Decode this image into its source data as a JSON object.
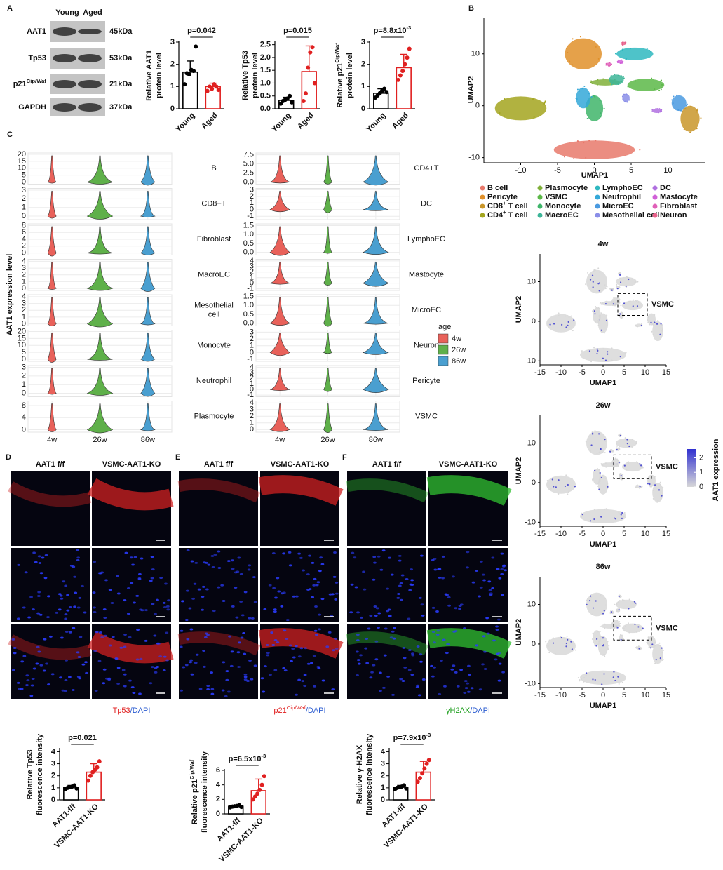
{
  "figure": {
    "panel_letters": [
      "A",
      "B",
      "C",
      "D",
      "E",
      "F"
    ],
    "blot": {
      "groups": [
        "Young",
        "Aged"
      ],
      "rows": [
        {
          "label": [
            {
              "text": "AAT1"
            }
          ],
          "size": "45kDa"
        },
        {
          "label": [
            {
              "text": "Tp53"
            }
          ],
          "size": "53kDa"
        },
        {
          "label": [
            {
              "text": "p21"
            },
            {
              "text": "Cip/Waf",
              "sup": true
            }
          ],
          "size": "21kDa"
        },
        {
          "label": [
            {
              "text": "GAPDH"
            }
          ],
          "size": "37kDa"
        }
      ]
    },
    "protein_charts": [
      {
        "ylabel": [
          [
            {
              "text": "Relative AAT1"
            }
          ],
          [
            {
              "text": "protein level"
            }
          ]
        ],
        "categories": [
          "Young",
          "Aged"
        ],
        "values": [
          1.65,
          1.0
        ],
        "errors": [
          0.5,
          0.15
        ],
        "points": [
          [
            1.1,
            1.6,
            1.55,
            1.75,
            1.7,
            2.8
          ],
          [
            0.8,
            1.0,
            0.9,
            1.1,
            1.0,
            0.85
          ]
        ],
        "colors": [
          "#000000",
          "#e02020"
        ],
        "ylim": [
          0,
          3
        ],
        "yticks": [
          0,
          1,
          2,
          3
        ],
        "pvalue": [
          {
            "text": "p=0.042"
          }
        ]
      },
      {
        "ylabel": [
          [
            {
              "text": "Relative Tp53"
            }
          ],
          [
            {
              "text": "protein level"
            }
          ]
        ],
        "categories": [
          "Young",
          "Aged"
        ],
        "values": [
          0.33,
          1.45
        ],
        "errors": [
          0.12,
          1.0
        ],
        "points": [
          [
            0.2,
            0.3,
            0.35,
            0.4,
            0.5,
            0.25
          ],
          [
            0.3,
            0.6,
            1.6,
            2.2,
            2.4,
            1.0
          ]
        ],
        "colors": [
          "#000000",
          "#e02020"
        ],
        "ylim": [
          0,
          2.6
        ],
        "yticks": [
          {
            "value": 0,
            "label": "0.0"
          },
          0.5,
          {
            "value": 1,
            "label": "1.0"
          },
          1.5,
          {
            "value": 2,
            "label": "2.0"
          },
          2.5
        ],
        "pvalue": [
          {
            "text": "p=0.015"
          }
        ]
      },
      {
        "ylabel": [
          [
            {
              "text": "Relative p21"
            },
            {
              "text": "Cip/Waf",
              "sup": true
            }
          ],
          [
            {
              "text": "protein level"
            }
          ]
        ],
        "categories": [
          "Young",
          "Aged"
        ],
        "values": [
          0.7,
          1.85
        ],
        "errors": [
          0.2,
          0.6
        ],
        "points": [
          [
            0.5,
            0.6,
            0.7,
            0.8,
            0.9,
            0.75
          ],
          [
            1.3,
            1.5,
            1.7,
            2.0,
            2.3,
            2.7
          ]
        ],
        "colors": [
          "#000000",
          "#e02020"
        ],
        "ylim": [
          0,
          3
        ],
        "yticks": [
          0,
          1,
          2,
          3
        ],
        "pvalue": [
          {
            "text": "p=8.8x10"
          },
          {
            "text": "-3",
            "sup": true
          }
        ]
      }
    ],
    "umap": {
      "xlabel": "UMAP1",
      "ylabel": "UMAP2",
      "xlim": [
        -15,
        15
      ],
      "ylim": [
        -11,
        17
      ],
      "xticks": [
        -10,
        -5,
        0,
        5,
        10
      ],
      "yticks": [
        -10,
        0,
        10
      ],
      "legend": [
        {
          "label": [
            {
              "text": "B cell"
            }
          ],
          "color": "#e8796b"
        },
        {
          "label": [
            {
              "text": "Pericyte"
            }
          ],
          "color": "#e0902a"
        },
        {
          "label": [
            {
              "text": "CD8"
            },
            {
              "text": "+",
              "sup": true
            },
            {
              "text": " T cell"
            }
          ],
          "color": "#c9962a"
        },
        {
          "label": [
            {
              "text": "CD4"
            },
            {
              "text": "+",
              "sup": true
            },
            {
              "text": " T cell"
            }
          ],
          "color": "#a3a51f"
        },
        {
          "label": [
            {
              "text": "Plasmocyte"
            }
          ],
          "color": "#80b03a"
        },
        {
          "label": [
            {
              "text": "VSMC"
            }
          ],
          "color": "#5cb848"
        },
        {
          "label": [
            {
              "text": "Monocyte"
            }
          ],
          "color": "#3fb56a"
        },
        {
          "label": [
            {
              "text": "MacroEC"
            }
          ],
          "color": "#3cb598"
        },
        {
          "label": [
            {
              "text": "LymphoEC"
            }
          ],
          "color": "#2fb8c0"
        },
        {
          "label": [
            {
              "text": "Neutrophil"
            }
          ],
          "color": "#34a8d8"
        },
        {
          "label": [
            {
              "text": "MicroEC"
            }
          ],
          "color": "#4a9ae0"
        },
        {
          "label": [
            {
              "text": "Mesothelial cell"
            }
          ],
          "color": "#8a8ee8"
        },
        {
          "label": [
            {
              "text": "DC"
            }
          ],
          "color": "#b070e0"
        },
        {
          "label": [
            {
              "text": "Mastocyte"
            }
          ],
          "color": "#d060d8"
        },
        {
          "label": [
            {
              "text": "Fibroblast"
            }
          ],
          "color": "#e060b8"
        },
        {
          "label": [
            {
              "text": "Neuron"
            }
          ],
          "color": "#e8608a"
        }
      ]
    },
    "feature_plots": {
      "titles": [
        "4w",
        "26w",
        "86w"
      ],
      "xlabel": "UMAP1",
      "ylabel": "UMAP2",
      "xlim": [
        -15,
        15
      ],
      "ylim": [
        -11,
        17
      ],
      "xticks": [
        -15,
        -10,
        -5,
        0,
        5,
        10,
        15
      ],
      "yticks": [
        -10,
        0,
        10
      ],
      "box_label": "VSMC",
      "colorbar": {
        "label": "AAT1 expression",
        "ticks": [
          0,
          1,
          2
        ],
        "lim": [
          0,
          2.6
        ],
        "colors": [
          "#d8d8d8",
          "#3030d0"
        ]
      }
    },
    "violins": {
      "ylabel": "AAT1 expression level",
      "categories": [
        "4w",
        "26w",
        "86w"
      ],
      "colors": [
        "#e8615a",
        "#5fb04a",
        "#4a9fd0"
      ],
      "legend_title": "age",
      "columns": [
        [
          {
            "label": [
              "B"
            ],
            "ylim": [
              -1.5,
              21
            ],
            "yticks": [
              0,
              5,
              10,
              15,
              20
            ]
          },
          {
            "label": [
              "CD8+T"
            ],
            "ylim": [
              -0.4,
              3.2
            ],
            "yticks": [
              0,
              1,
              2,
              3
            ]
          },
          {
            "label": [
              "Fibroblast"
            ],
            "ylim": [
              -0.6,
              8.5
            ],
            "yticks": [
              0,
              2,
              4,
              6,
              8
            ]
          },
          {
            "label": [
              "MacroEC"
            ],
            "ylim": [
              -0.3,
              4.3
            ],
            "yticks": [
              0,
              1,
              2,
              3,
              4
            ]
          },
          {
            "label": [
              "Mesothelial",
              "cell"
            ],
            "ylim": [
              -0.3,
              4.3
            ],
            "yticks": [
              0,
              1,
              2,
              3,
              4
            ]
          },
          {
            "label": [
              "Monocyte"
            ],
            "ylim": [
              -1.5,
              21
            ],
            "yticks": [
              0,
              5,
              10,
              15,
              20
            ]
          },
          {
            "label": [
              "Neutrophil"
            ],
            "ylim": [
              -0.4,
              3.2
            ],
            "yticks": [
              0,
              1,
              2,
              3
            ]
          },
          {
            "label": [
              "Plasmocyte"
            ],
            "ylim": [
              -0.8,
              9.5
            ],
            "yticks": [
              0,
              4,
              8
            ]
          }
        ],
        [
          {
            "label": [
              "CD4+T"
            ],
            "ylim": [
              -0.6,
              8
            ],
            "yticks": [
              {
                "value": 0,
                "label": "0.0"
              },
              2.5,
              {
                "value": 5,
                "label": "5.0"
              },
              7.5
            ]
          },
          {
            "label": [
              "DC"
            ],
            "ylim": [
              -1.5,
              3.2
            ],
            "yticks": [
              -1,
              0,
              1,
              2,
              3
            ]
          },
          {
            "label": [
              "LymphoEC"
            ],
            "ylim": [
              -0.15,
              1.6
            ],
            "yticks": [
              {
                "value": 0,
                "label": "0.0"
              },
              0.5,
              {
                "value": 1,
                "label": "1.0"
              },
              1.5
            ]
          },
          {
            "label": [
              "Mastocyte"
            ],
            "ylim": [
              -1.3,
              4.3
            ],
            "yticks": [
              -1,
              0,
              1,
              2,
              3,
              4
            ]
          },
          {
            "label": [
              "MicroEC"
            ],
            "ylim": [
              -0.15,
              1.6
            ],
            "yticks": [
              {
                "value": 0,
                "label": "0.0"
              },
              0.5,
              {
                "value": 1,
                "label": "1.0"
              },
              1.5
            ]
          },
          {
            "label": [
              "Neuron"
            ],
            "ylim": [
              -1.3,
              3.3
            ],
            "yticks": [
              -1,
              0,
              1,
              2,
              3
            ]
          },
          {
            "label": [
              "Pericyte"
            ],
            "ylim": [
              -1.3,
              4.3
            ],
            "yticks": [
              -1,
              0,
              1,
              2,
              3,
              4
            ]
          },
          {
            "label": [
              "VSMC"
            ],
            "ylim": [
              -0.4,
              4.3
            ],
            "yticks": [
              0,
              1,
              2,
              3,
              4
            ]
          }
        ]
      ]
    },
    "micrographs": [
      {
        "conditions": [
          "AAT1 f/f",
          "VSMC-AAT1-KO"
        ],
        "marker_color": "#d02020",
        "stain": [
          {
            "text": "Tp53",
            "color": "#e02020"
          },
          {
            "text": "/DAPI",
            "color": "#2a5bd0"
          }
        ]
      },
      {
        "conditions": [
          "AAT1 f/f",
          "VSMC-AAT1-KO"
        ],
        "marker_color": "#d02020",
        "stain": [
          {
            "text": "p21",
            "color": "#e02020"
          },
          {
            "text": "Cip/Waf",
            "sup": true,
            "color": "#e02020"
          },
          {
            "text": "/DAPI",
            "color": "#2a5bd0"
          }
        ]
      },
      {
        "conditions": [
          "AAT1 f/f",
          "VSMC-AAT1-KO"
        ],
        "marker_color": "#30c030",
        "stain": [
          {
            "text": "γH2AX",
            "color": "#20a020"
          },
          {
            "text": "/DAPI",
            "color": "#2a5bd0"
          }
        ]
      }
    ],
    "fluorescence_charts": [
      {
        "ylabel": [
          [
            {
              "text": "Relative Tp53"
            }
          ],
          [
            {
              "text": "fluorescence intensity"
            }
          ]
        ],
        "categories": [
          "AAT1-f/f",
          "VSMC-AAT1-KO"
        ],
        "values": [
          1.05,
          2.3
        ],
        "errors": [
          0.15,
          0.7
        ],
        "points": [
          [
            0.9,
            1.0,
            1.05,
            1.1,
            1.2,
            0.95
          ],
          [
            1.6,
            2.0,
            2.3,
            2.5,
            2.7,
            3.2
          ]
        ],
        "colors": [
          "#000000",
          "#e02020"
        ],
        "ylim": [
          0,
          4.2
        ],
        "yticks": [
          0,
          1,
          2,
          3,
          4
        ],
        "pvalue": [
          {
            "text": "p=0.021"
          }
        ]
      },
      {
        "ylabel": [
          [
            {
              "text": "Relative p21"
            },
            {
              "text": "Cip/Waf",
              "sup": true
            }
          ],
          [
            {
              "text": "fluorescence intensity"
            }
          ]
        ],
        "categories": [
          "AAT1-f/f",
          "VSMC-AAT1-KO"
        ],
        "values": [
          1.05,
          3.2
        ],
        "errors": [
          0.15,
          1.6
        ],
        "points": [
          [
            0.9,
            1.0,
            1.05,
            1.1,
            1.2,
            0.95
          ],
          [
            2.0,
            2.4,
            2.8,
            3.3,
            4.0,
            5.2
          ]
        ],
        "colors": [
          "#000000",
          "#e02020"
        ],
        "ylim": [
          0,
          6
        ],
        "yticks": [
          0,
          2,
          4,
          6
        ],
        "pvalue": [
          {
            "text": "p=6.5x10"
          },
          {
            "text": "-3",
            "sup": true
          }
        ]
      },
      {
        "ylabel": [
          [
            {
              "text": "Relative γ-H2AX"
            }
          ],
          [
            {
              "text": "fluorescence intensity"
            }
          ]
        ],
        "categories": [
          "AAT1-f/f",
          "VSMC-AAT1-KO"
        ],
        "values": [
          1.05,
          2.3
        ],
        "errors": [
          0.15,
          0.9
        ],
        "points": [
          [
            0.9,
            1.0,
            1.05,
            1.1,
            1.2,
            0.95
          ],
          [
            1.5,
            1.8,
            2.2,
            2.6,
            3.0,
            3.3
          ]
        ],
        "colors": [
          "#000000",
          "#e02020"
        ],
        "ylim": [
          0,
          4.2
        ],
        "yticks": [
          0,
          1,
          2,
          3,
          4
        ],
        "pvalue": [
          {
            "text": "p=7.9x10"
          },
          {
            "text": "-3",
            "sup": true
          }
        ]
      }
    ]
  }
}
